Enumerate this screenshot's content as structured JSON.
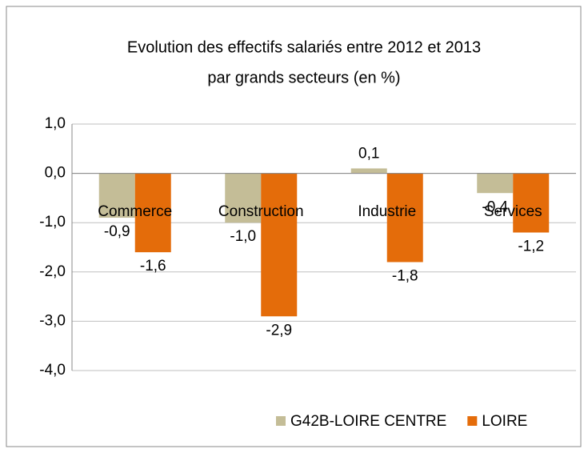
{
  "chart_data": {
    "type": "bar",
    "title": "Evolution des effectifs salariés entre 2012 et 2013",
    "subtitle": "par grands secteurs (en %)",
    "categories": [
      "Commerce",
      "Construction",
      "Industrie",
      "Services"
    ],
    "series": [
      {
        "name": "G42B-LOIRE CENTRE",
        "color": "#c4bd97",
        "values": [
          -0.9,
          -1.0,
          0.1,
          -0.4
        ],
        "value_labels": [
          "-0,9",
          "-1,0",
          "0,1",
          "-0,4"
        ]
      },
      {
        "name": "LOIRE",
        "color": "#e46c0a",
        "values": [
          -1.6,
          -2.9,
          -1.8,
          -1.2
        ],
        "value_labels": [
          "-1,6",
          "-2,9",
          "-1,8",
          "-1,2"
        ]
      }
    ],
    "ylim": [
      -4,
      1
    ],
    "yticks": [
      {
        "value": -4,
        "label": "-4,0"
      },
      {
        "value": -3,
        "label": "-3,0"
      },
      {
        "value": -2,
        "label": "-2,0"
      },
      {
        "value": -1,
        "label": "-1,0"
      },
      {
        "value": 0,
        "label": "0,0"
      },
      {
        "value": 1,
        "label": "1,0"
      }
    ],
    "grid": true,
    "legend": "bottom"
  }
}
